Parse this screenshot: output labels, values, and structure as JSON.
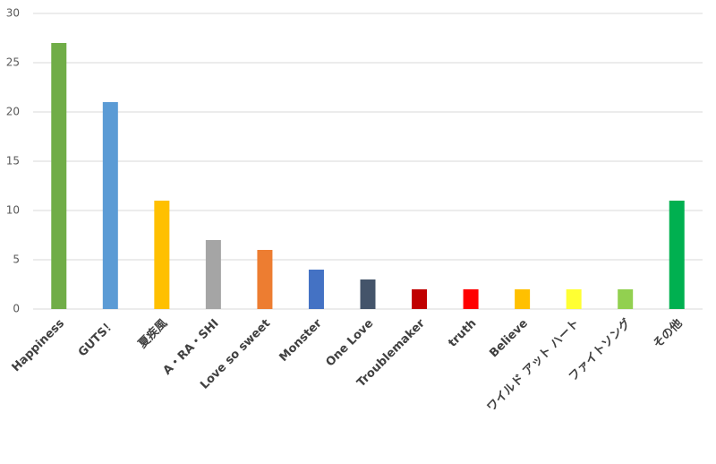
{
  "chart_data": {
    "type": "bar",
    "categories": [
      "Happiness",
      "GUTS！",
      "夏疾風",
      "A・RA・SHI",
      "Love so sweet",
      "Monster",
      "One Love",
      "Troublemaker",
      "truth",
      "Believe",
      "ワイルド アット ハート",
      "ファイトソング",
      "その他"
    ],
    "values": [
      27,
      21,
      11,
      7,
      6,
      4,
      3,
      2,
      2,
      2,
      2,
      2,
      11
    ],
    "colors": [
      "#70ad47",
      "#5b9bd5",
      "#ffc000",
      "#a5a5a5",
      "#ed7d31",
      "#4472c4",
      "#44546a",
      "#c00000",
      "#ff0000",
      "#ffc000",
      "#ffff33",
      "#92d050",
      "#00b050"
    ],
    "ylim": [
      0,
      30
    ],
    "yticks": [
      0,
      5,
      10,
      15,
      20,
      25,
      30
    ],
    "grid": true
  }
}
